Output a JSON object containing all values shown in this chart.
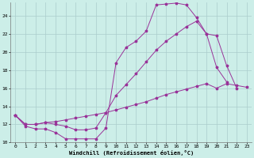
{
  "background_color": "#cceee8",
  "grid_color": "#aacccc",
  "line_color": "#993399",
  "xlabel": "Windchill (Refroidissement éolien,°C)",
  "xlim": [
    -0.5,
    23.5
  ],
  "ylim": [
    10,
    25.5
  ],
  "xticks": [
    0,
    1,
    2,
    3,
    4,
    5,
    6,
    7,
    8,
    9,
    10,
    11,
    12,
    13,
    14,
    15,
    16,
    17,
    18,
    19,
    20,
    21,
    22,
    23
  ],
  "yticks": [
    10,
    12,
    14,
    16,
    18,
    20,
    22,
    24
  ],
  "line1_x": [
    0,
    1,
    2,
    3,
    4,
    5,
    6,
    7,
    8,
    9,
    10,
    11,
    12,
    13,
    14,
    15,
    16,
    17,
    18,
    19,
    20,
    21
  ],
  "line1_y": [
    13.0,
    11.8,
    11.5,
    11.5,
    11.1,
    10.4,
    10.4,
    10.4,
    10.4,
    11.6,
    18.8,
    20.5,
    21.2,
    22.3,
    25.2,
    25.3,
    25.4,
    25.2,
    23.8,
    22.0,
    18.3,
    16.7
  ],
  "line2_x": [
    0,
    1,
    2,
    3,
    4,
    5,
    6,
    7,
    8,
    9,
    10,
    11,
    12,
    13,
    14,
    15,
    16,
    17,
    18,
    19,
    20,
    21,
    22
  ],
  "line2_y": [
    13.0,
    12.0,
    12.0,
    12.2,
    12.0,
    11.8,
    11.4,
    11.4,
    11.6,
    13.3,
    15.2,
    16.4,
    17.6,
    18.9,
    20.2,
    21.2,
    22.0,
    22.8,
    23.4,
    22.0,
    21.8,
    18.5,
    16.0
  ],
  "line3_x": [
    0,
    1,
    2,
    3,
    4,
    5,
    6,
    7,
    8,
    9,
    10,
    11,
    12,
    13,
    14,
    15,
    16,
    17,
    18,
    19,
    20,
    21,
    22,
    23
  ],
  "line3_y": [
    13.0,
    12.0,
    12.0,
    12.2,
    12.3,
    12.5,
    12.7,
    12.9,
    13.1,
    13.3,
    13.6,
    13.9,
    14.2,
    14.5,
    14.9,
    15.3,
    15.6,
    15.9,
    16.2,
    16.5,
    16.0,
    16.5,
    16.3,
    16.1
  ]
}
